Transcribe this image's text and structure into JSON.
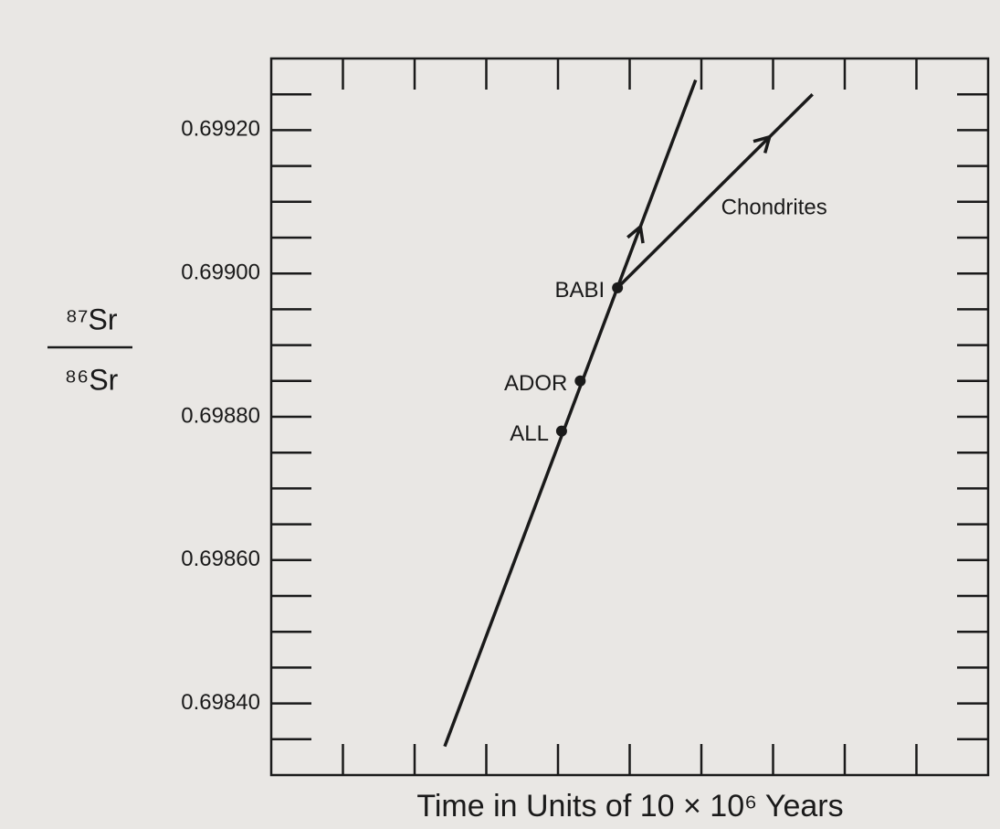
{
  "chart_data": {
    "type": "line",
    "xlabel": "Time in Units of 10 × 10⁶ Years",
    "ylabel_top": "⁸⁷Sr",
    "ylabel_bottom": "⁸⁶Sr",
    "xlim": [
      0,
      10
    ],
    "xticks": [
      1,
      2,
      3,
      4,
      5,
      6,
      7,
      8,
      9
    ],
    "ylim": [
      0.6983,
      0.6993
    ],
    "yticks": [
      {
        "value": 0.6984,
        "label": "0.69840"
      },
      {
        "value": 0.6986,
        "label": "0.69860"
      },
      {
        "value": 0.6988,
        "label": "0.69880"
      },
      {
        "value": 0.699,
        "label": "0.69900"
      },
      {
        "value": 0.6992,
        "label": "0.69920"
      }
    ],
    "yminor_ticks": [
      0.69835,
      0.69845,
      0.6985,
      0.69855,
      0.69865,
      0.6987,
      0.69875,
      0.69885,
      0.6989,
      0.69895,
      0.69905,
      0.6991,
      0.69915,
      0.69925
    ],
    "series": [
      {
        "color": "#1a1a1a",
        "x": [
          2.42,
          5.92
        ],
        "values": [
          0.69834,
          0.69927
        ]
      },
      {
        "name": "Chondrites",
        "color": "#1a1a1a",
        "x": [
          4.83,
          7.55
        ],
        "values": [
          0.69898,
          0.69925
        ]
      }
    ],
    "points": [
      {
        "label": "BABI",
        "x": 4.83,
        "value": 0.69898
      },
      {
        "label": "ADOR",
        "x": 4.31,
        "value": 0.69885
      },
      {
        "label": "ALL",
        "x": 4.05,
        "value": 0.69878
      }
    ]
  }
}
